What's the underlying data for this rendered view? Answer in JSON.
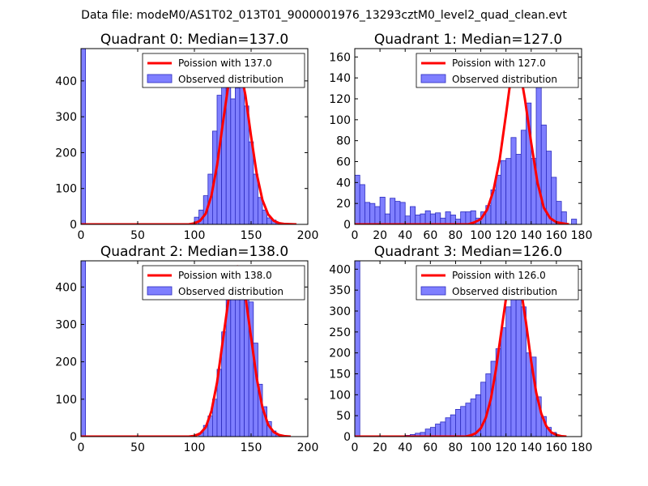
{
  "suptitle": "Data file: modeM0/AS1T02_013T01_9000001976_13293cztM0_level2_quad_clean.evt",
  "colors": {
    "bar_fill": "#7f7fff",
    "bar_edge": "#2b2bbf",
    "poisson_line": "#ff0000"
  },
  "chart_data": [
    {
      "type": "bar",
      "title": "Quadrant 0: Median=137.0",
      "xlim": [
        0,
        200
      ],
      "ylim": [
        0,
        490
      ],
      "xticks": [
        0,
        50,
        100,
        150,
        200
      ],
      "yticks": [
        0,
        100,
        200,
        300,
        400
      ],
      "legend_position": "top-right",
      "series": [
        {
          "name": "Poission with 137.0",
          "kind": "line",
          "x": [
            0,
            95,
            100,
            105,
            110,
            115,
            120,
            125,
            130,
            135,
            137,
            140,
            145,
            150,
            155,
            160,
            165,
            170,
            175,
            180,
            190
          ],
          "values": [
            0,
            0,
            3,
            10,
            30,
            80,
            165,
            280,
            390,
            455,
            460,
            440,
            360,
            245,
            140,
            68,
            28,
            10,
            3,
            1,
            0
          ]
        },
        {
          "name": "Observed distribution",
          "kind": "histogram",
          "bin_edges": [
            0,
            4,
            100,
            104,
            108,
            112,
            116,
            120,
            124,
            128,
            132,
            136,
            140,
            144,
            148,
            152,
            156,
            160,
            164,
            168,
            172,
            176,
            180,
            184,
            188
          ],
          "values": [
            490,
            0,
            20,
            40,
            80,
            140,
            260,
            360,
            420,
            400,
            350,
            380,
            410,
            330,
            230,
            140,
            75,
            40,
            18,
            12,
            5,
            2,
            1,
            0
          ]
        }
      ]
    },
    {
      "type": "bar",
      "title": "Quadrant 1: Median=127.0",
      "xlim": [
        0,
        180
      ],
      "ylim": [
        0,
        168
      ],
      "xticks": [
        0,
        20,
        40,
        60,
        80,
        100,
        120,
        140,
        160,
        180
      ],
      "yticks": [
        0,
        20,
        40,
        60,
        80,
        100,
        120,
        140,
        160
      ],
      "legend_position": "top-right",
      "series": [
        {
          "name": "Poission with 127.0",
          "kind": "line",
          "x": [
            0,
            90,
            95,
            100,
            105,
            110,
            115,
            120,
            125,
            127,
            130,
            135,
            140,
            145,
            150,
            155,
            160,
            165,
            170
          ],
          "values": [
            0,
            0,
            2,
            5,
            14,
            32,
            62,
            105,
            150,
            162,
            155,
            120,
            78,
            40,
            16,
            6,
            2,
            1,
            0
          ]
        },
        {
          "name": "Observed distribution",
          "kind": "histogram",
          "bin_edges": [
            0,
            4,
            8,
            12,
            16,
            20,
            24,
            28,
            32,
            36,
            40,
            44,
            48,
            52,
            56,
            60,
            64,
            68,
            72,
            76,
            80,
            84,
            88,
            92,
            96,
            100,
            104,
            108,
            112,
            116,
            120,
            124,
            128,
            132,
            136,
            140,
            144,
            148,
            152,
            156,
            160,
            164,
            168,
            172,
            176
          ],
          "values": [
            47,
            38,
            21,
            20,
            17,
            26,
            10,
            25,
            22,
            21,
            8,
            17,
            9,
            10,
            13,
            10,
            11,
            6,
            12,
            9,
            5,
            12,
            12,
            13,
            6,
            12,
            18,
            33,
            47,
            61,
            63,
            83,
            67,
            90,
            116,
            63,
            142,
            95,
            70,
            45,
            22,
            12,
            0,
            5
          ]
        }
      ]
    },
    {
      "type": "bar",
      "title": "Quadrant 2: Median=138.0",
      "xlim": [
        0,
        200
      ],
      "ylim": [
        0,
        470
      ],
      "xticks": [
        0,
        50,
        100,
        150,
        200
      ],
      "yticks": [
        0,
        100,
        200,
        300,
        400
      ],
      "legend_position": "top-right",
      "series": [
        {
          "name": "Poission with 138.0",
          "kind": "line",
          "x": [
            0,
            95,
            100,
            105,
            110,
            115,
            120,
            125,
            130,
            135,
            138,
            140,
            145,
            150,
            155,
            160,
            165,
            170,
            175,
            180,
            185
          ],
          "values": [
            0,
            0,
            2,
            8,
            25,
            68,
            145,
            255,
            365,
            440,
            455,
            445,
            375,
            265,
            155,
            78,
            32,
            12,
            4,
            1,
            0
          ]
        },
        {
          "name": "Observed distribution",
          "kind": "histogram",
          "bin_edges": [
            0,
            4,
            104,
            108,
            112,
            116,
            120,
            124,
            128,
            132,
            136,
            140,
            144,
            148,
            152,
            156,
            160,
            164,
            168,
            172,
            176,
            180,
            184
          ],
          "values": [
            470,
            0,
            10,
            30,
            55,
            100,
            180,
            280,
            370,
            440,
            420,
            410,
            400,
            360,
            250,
            140,
            80,
            40,
            15,
            5,
            2,
            0
          ]
        }
      ]
    },
    {
      "type": "bar",
      "title": "Quadrant 3: Median=126.0",
      "xlim": [
        0,
        180
      ],
      "ylim": [
        0,
        420
      ],
      "xticks": [
        0,
        20,
        40,
        60,
        80,
        100,
        120,
        140,
        160,
        180
      ],
      "yticks": [
        0,
        50,
        100,
        150,
        200,
        250,
        300,
        350,
        400
      ],
      "legend_position": "top-right",
      "series": [
        {
          "name": "Poission with 126.0",
          "kind": "line",
          "x": [
            0,
            88,
            92,
            96,
            100,
            104,
            108,
            112,
            116,
            120,
            124,
            126,
            128,
            132,
            136,
            140,
            144,
            148,
            152,
            156,
            160,
            164,
            168
          ],
          "values": [
            0,
            0,
            3,
            8,
            20,
            45,
            90,
            160,
            245,
            330,
            390,
            400,
            395,
            350,
            270,
            180,
            105,
            55,
            25,
            10,
            4,
            1,
            0
          ]
        },
        {
          "name": "Observed distribution",
          "kind": "histogram",
          "bin_edges": [
            0,
            4,
            8,
            12,
            16,
            20,
            24,
            28,
            32,
            36,
            40,
            44,
            48,
            52,
            56,
            60,
            64,
            68,
            72,
            76,
            80,
            84,
            88,
            92,
            96,
            100,
            104,
            108,
            112,
            116,
            120,
            124,
            128,
            132,
            136,
            140,
            144,
            148,
            152,
            156,
            160,
            164
          ],
          "values": [
            420,
            0,
            0,
            0,
            0,
            0,
            0,
            0,
            0,
            2,
            3,
            5,
            8,
            10,
            18,
            22,
            30,
            35,
            45,
            52,
            65,
            72,
            80,
            90,
            100,
            130,
            150,
            180,
            210,
            260,
            310,
            400,
            370,
            310,
            200,
            190,
            95,
            48,
            22,
            10,
            3
          ]
        }
      ]
    }
  ]
}
